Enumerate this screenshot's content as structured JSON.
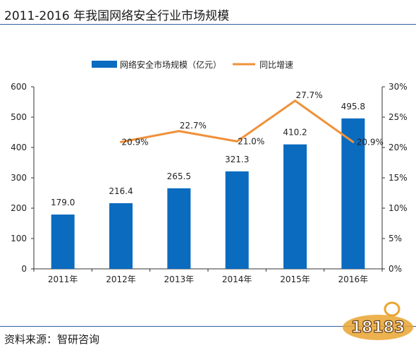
{
  "header": {
    "title": "2011-2016 年我国网络安全行业市场规模"
  },
  "footer": {
    "source": "资料来源：智研咨询"
  },
  "watermark": {
    "text": "18183"
  },
  "colors": {
    "bar": "#0a6bbf",
    "line": "#f0913a",
    "rule": "#2f5f9e"
  },
  "chart_data": {
    "type": "bar",
    "categories": [
      "2011年",
      "2012年",
      "2013年",
      "2014年",
      "2015年",
      "2016年"
    ],
    "series": [
      {
        "name": "网络安全市场规模（亿元）",
        "type": "bar",
        "axis": "left",
        "values": [
          179.0,
          216.4,
          265.5,
          321.3,
          410.2,
          495.8
        ],
        "labels": [
          "179.0",
          "216.4",
          "265.5",
          "321.3",
          "410.2",
          "495.8"
        ]
      },
      {
        "name": "同比增速",
        "type": "line",
        "axis": "right",
        "values": [
          null,
          20.9,
          22.7,
          21.0,
          27.7,
          20.9
        ],
        "labels": [
          null,
          "20.9%",
          "22.7%",
          "21.0%",
          "27.7%",
          "20.9%"
        ]
      }
    ],
    "y_left": {
      "ylim": [
        0,
        600
      ],
      "ticks": [
        "0",
        "100",
        "200",
        "300",
        "400",
        "500",
        "600"
      ]
    },
    "y_right": {
      "ylim": [
        0,
        30
      ],
      "ticks": [
        "0%",
        "5%",
        "10%",
        "15%",
        "20%",
        "25%",
        "30%"
      ]
    },
    "legend_position": "top-center",
    "grid": false
  }
}
